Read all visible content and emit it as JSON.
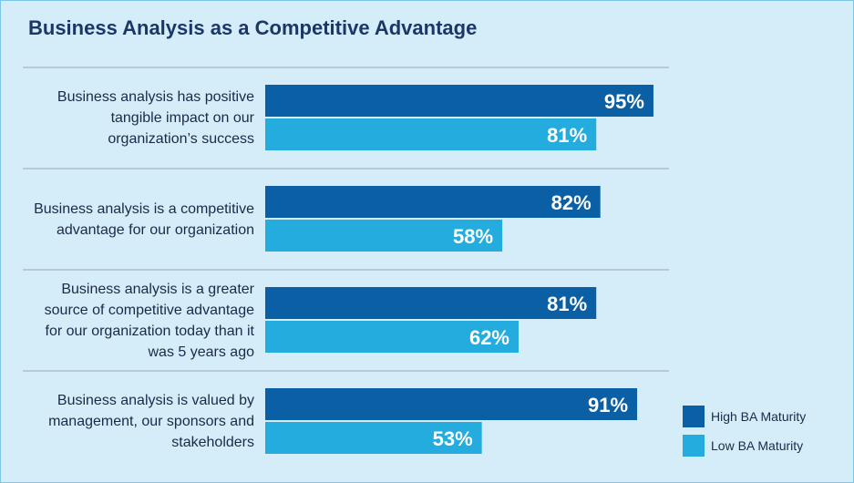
{
  "chart_data": {
    "type": "bar",
    "orientation": "horizontal",
    "title": "Business Analysis as a Competitive Advantage",
    "categories": [
      "Business analysis has positive tangible impact on our organization’s success",
      "Business analysis is a competitive advantage for our organization",
      "Business analysis is a greater source of competitive advantage for our organization today than it was 5 years ago",
      "Business analysis is valued by management, our sponsors and stakeholders"
    ],
    "series": [
      {
        "name": "High BA Maturity",
        "color": "#0b5fa5",
        "values": [
          95,
          82,
          81,
          91
        ],
        "value_labels": [
          "95%",
          "82%",
          "81%",
          "91%"
        ]
      },
      {
        "name": "Low BA Maturity",
        "color": "#25acdf",
        "values": [
          81,
          58,
          62,
          53
        ],
        "value_labels": [
          "81%",
          "58%",
          "62%",
          "53%"
        ]
      }
    ],
    "legend": "bottom-right"
  }
}
